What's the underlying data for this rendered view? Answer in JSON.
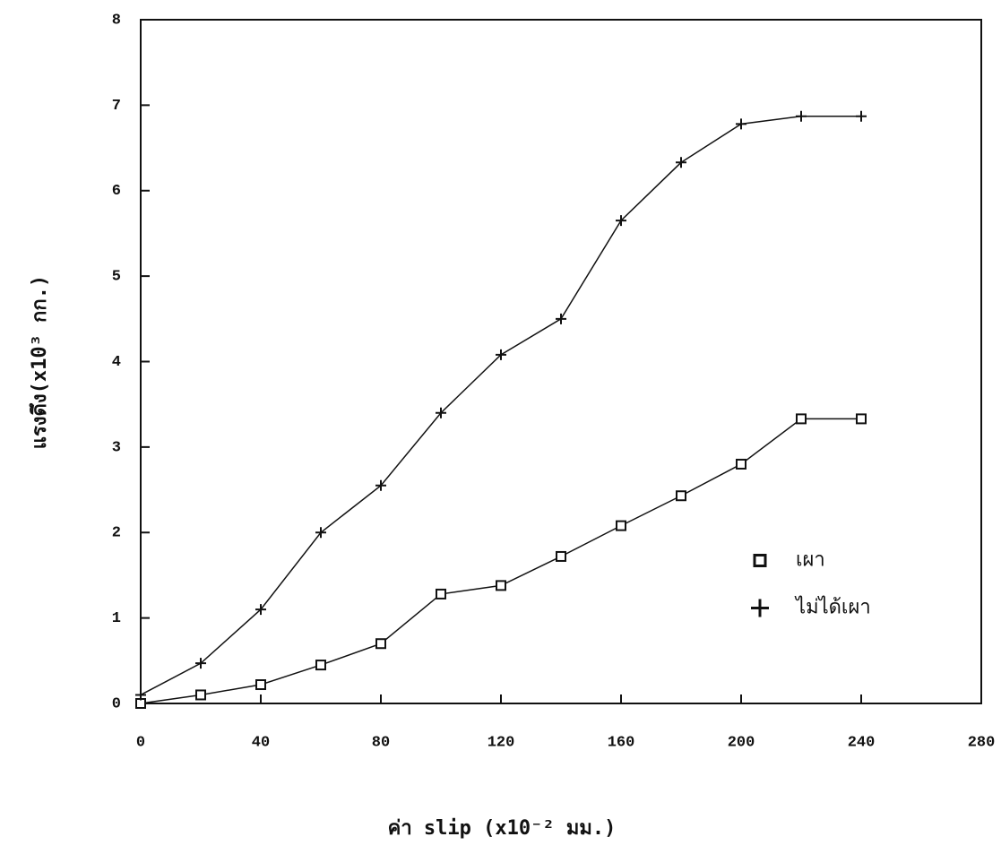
{
  "chart_data": {
    "type": "line",
    "xlabel": "ค่า slip (x10⁻² มม.)",
    "ylabel": "แรงดึง(x10³ กก.)",
    "x": [
      0,
      20,
      40,
      60,
      80,
      100,
      120,
      140,
      160,
      180,
      200,
      220,
      240
    ],
    "series": [
      {
        "name": "เผา",
        "color": "#111111",
        "marker": "square",
        "values": [
          0,
          0.1,
          0.22,
          0.45,
          0.7,
          1.28,
          1.38,
          1.72,
          2.08,
          2.43,
          2.8,
          3.33,
          3.33
        ]
      },
      {
        "name": "ไม่ได้เผา",
        "color": "#111111",
        "marker": "plus",
        "values": [
          0.1,
          0.47,
          1.1,
          2.0,
          2.55,
          3.4,
          4.08,
          4.5,
          5.65,
          6.33,
          6.78,
          6.87,
          6.87
        ]
      }
    ],
    "xlim": [
      0,
      280
    ],
    "xticks": [
      0,
      40,
      80,
      120,
      160,
      200,
      240,
      280
    ],
    "ylim": [
      0,
      8
    ],
    "yticks": [
      0,
      1,
      2,
      3,
      4,
      5,
      6,
      7,
      8
    ],
    "grid": false,
    "legend": "center right"
  }
}
